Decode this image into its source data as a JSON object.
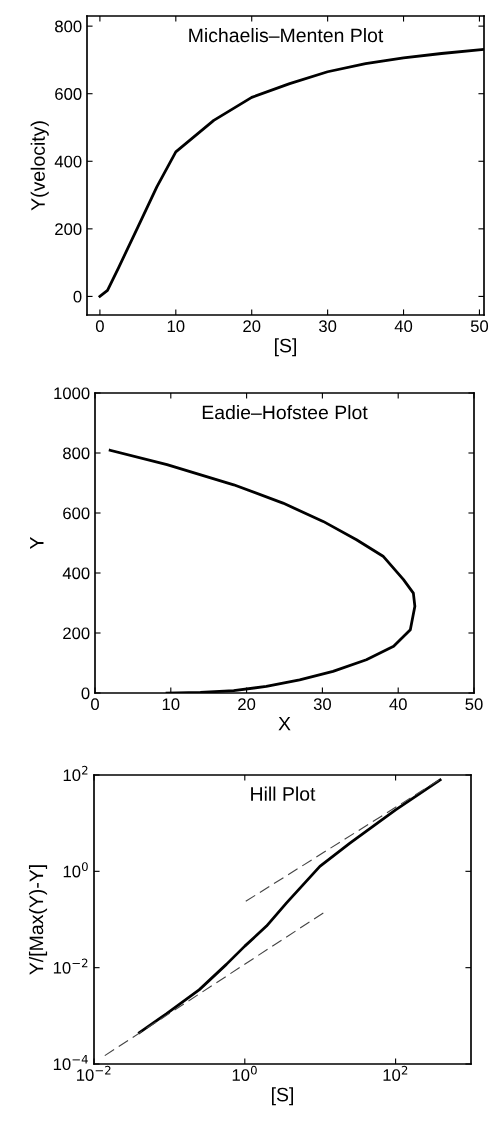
{
  "chart_data": [
    {
      "type": "line",
      "title": "Michaelis–Menten Plot",
      "xlabel": "[S]",
      "ylabel": "Y(velocity)",
      "xlim": [
        -1.7,
        50.6
      ],
      "ylim": [
        -55,
        830
      ],
      "xticks": [
        0,
        10,
        20,
        30,
        40,
        50
      ],
      "yticks": [
        0,
        200,
        400,
        600,
        800
      ],
      "grid": false,
      "series": [
        {
          "color": "#000000",
          "line_style": "solid",
          "x": [
            0,
            1,
            2.5,
            5,
            7.5,
            10,
            15,
            20,
            25,
            30,
            35,
            40,
            45,
            50.6
          ],
          "values": [
            0,
            18,
            87,
            205,
            324,
            428,
            521,
            589,
            630,
            665,
            689,
            706,
            719,
            731
          ]
        }
      ]
    },
    {
      "type": "line",
      "title": "Eadie–Hofstee Plot",
      "xlabel": "X",
      "ylabel": "Y",
      "xlim": [
        0,
        50
      ],
      "ylim": [
        0,
        1000
      ],
      "xticks": [
        0,
        10,
        20,
        30,
        40,
        50
      ],
      "yticks": [
        0,
        200,
        400,
        600,
        800,
        1000
      ],
      "grid": false,
      "series": [
        {
          "color": "#000000",
          "line_style": "solid",
          "x": [
            2.0,
            9.5,
            18.3,
            24.8,
            30.1,
            34.5,
            38,
            40.7,
            42,
            42.2,
            41.6,
            39.4,
            35.8,
            31.4,
            27,
            22.6,
            18.3,
            13.9,
            9.5
          ],
          "values": [
            809,
            761,
            694,
            633,
            572,
            511,
            456,
            378,
            333,
            289,
            211,
            156,
            111,
            72,
            44,
            22,
            8,
            2,
            0
          ]
        }
      ]
    },
    {
      "type": "line",
      "title": "Hill Plot",
      "xlabel": "[S]",
      "ylabel": "Y/[Max(Y)-Y]",
      "log": "xy",
      "xlim": [
        0.01,
        1000
      ],
      "ylim": [
        0.0001,
        100
      ],
      "xticks": [
        {
          "value": 0.01,
          "label": "10$^{−2}$"
        },
        {
          "value": 1,
          "label": "10$^{0}$"
        },
        {
          "value": 100,
          "label": "10$^{2}$"
        }
      ],
      "yticks": [
        {
          "value": 0.0001,
          "label": "10$^{−4}$"
        },
        {
          "value": 0.01,
          "label": "10$^{−2}$"
        },
        {
          "value": 1,
          "label": "10$^{0}$"
        },
        {
          "value": 100,
          "label": "10$^{2}$"
        }
      ],
      "grid": false,
      "series": [
        {
          "color": "#000000",
          "line_style": "solid",
          "x": [
            0.04,
            0.091,
            0.25,
            0.57,
            1,
            1.94,
            3.58,
            9.9,
            24.8,
            100,
            390
          ],
          "values": [
            0.00045,
            0.0011,
            0.0035,
            0.0117,
            0.028,
            0.073,
            0.221,
            1.27,
            3.86,
            18.9,
            78.9
          ]
        },
        {
          "color": "#444444",
          "line_style": "dashed",
          "x": [
            0.0139,
            11.0
          ],
          "values": [
            0.000149,
            0.137
          ]
        },
        {
          "color": "#444444",
          "line_style": "dashed",
          "x": [
            1.03,
            390
          ],
          "values": [
            0.239,
            81.3
          ]
        }
      ]
    }
  ]
}
